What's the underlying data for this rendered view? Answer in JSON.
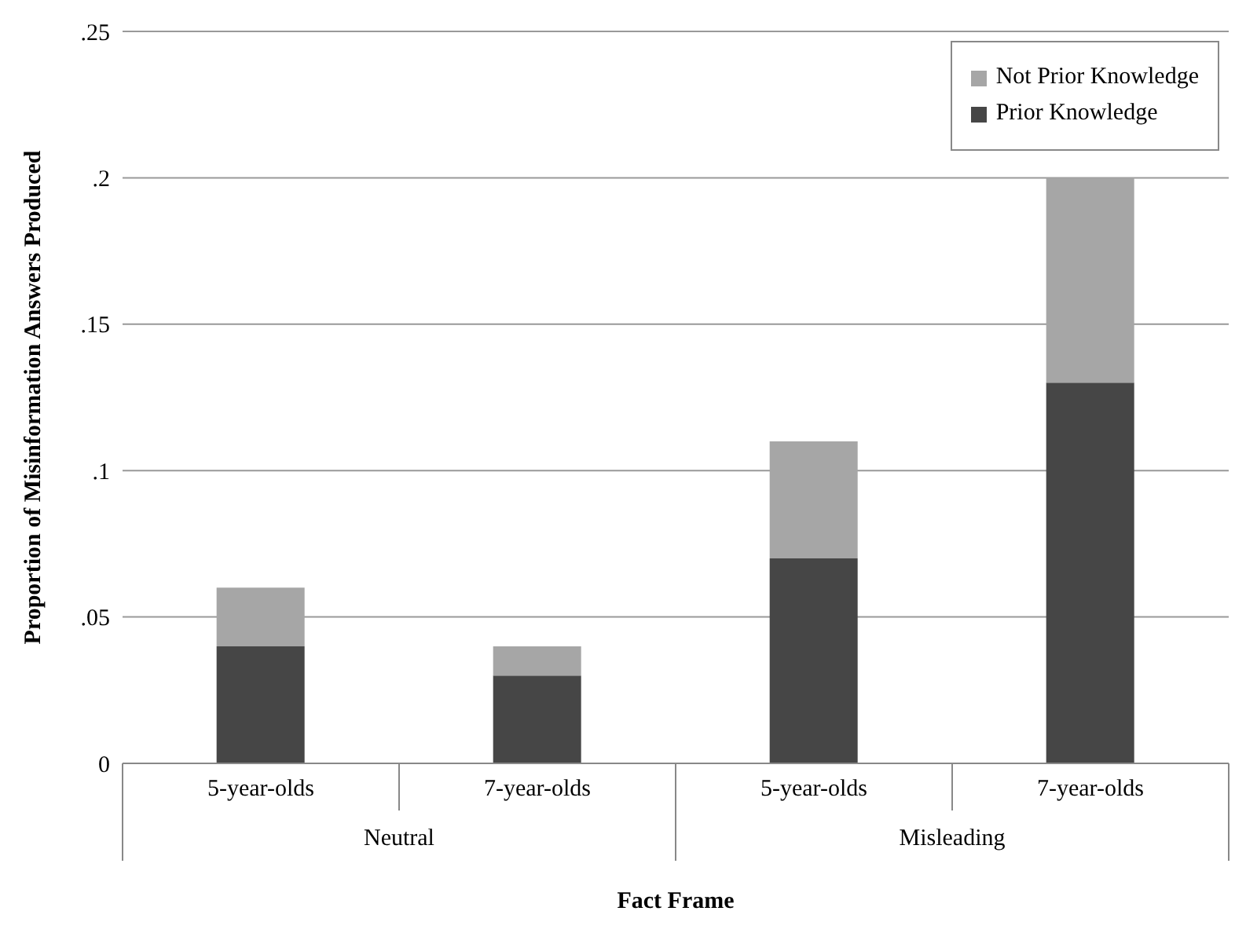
{
  "chart_data": {
    "type": "bar",
    "stacked": true,
    "xlabel": "Fact Frame",
    "ylabel": "Proportion of Misinformation Answers Produced",
    "categories": [
      "5-year-olds",
      "7-year-olds",
      "5-year-olds",
      "7-year-olds"
    ],
    "annotations": [
      "Neutral",
      "Misleading"
    ],
    "series": [
      {
        "name": "Prior Knowledge",
        "color": "#464646",
        "values": [
          0.04,
          0.03,
          0.07,
          0.13
        ]
      },
      {
        "name": "Not Prior Knowledge",
        "color": "#a6a6a6",
        "values": [
          0.02,
          0.01,
          0.04,
          0.07
        ]
      }
    ],
    "ylim": [
      0,
      0.25
    ],
    "yticks": [
      {
        "value": 0,
        "label": "0"
      },
      {
        "value": 0.05,
        "label": ".05"
      },
      {
        "value": 0.1,
        "label": ".1"
      },
      {
        "value": 0.15,
        "label": ".15"
      },
      {
        "value": 0.2,
        "label": ".2"
      },
      {
        "value": 0.25,
        "label": ".25"
      }
    ],
    "grid": "y",
    "legend": "top right"
  }
}
